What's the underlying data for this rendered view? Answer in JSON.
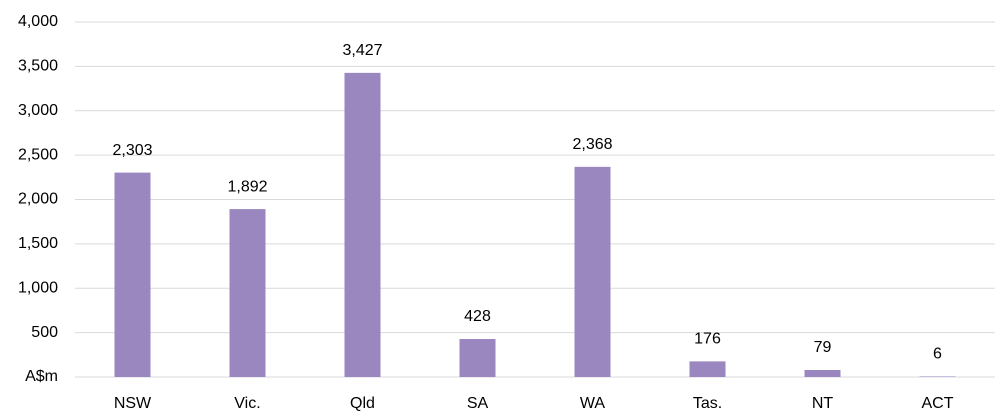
{
  "chart_data": {
    "type": "bar",
    "categories": [
      "NSW",
      "Vic.",
      "Qld",
      "SA",
      "WA",
      "Tas.",
      "NT",
      "ACT"
    ],
    "values": [
      2303,
      1892,
      3427,
      428,
      2368,
      176,
      79,
      6
    ],
    "value_labels": [
      "2,303",
      "1,892",
      "3,427",
      "428",
      "2,368",
      "176",
      "79",
      "6"
    ],
    "color": "#9b87c0",
    "ylim": [
      0,
      4000
    ],
    "yticks": [
      {
        "value": 0,
        "label": "A$m"
      },
      500,
      {
        "value": 1000,
        "label": "1,000"
      },
      {
        "value": 1500,
        "label": "1,500"
      },
      {
        "value": 2000,
        "label": "2,000"
      },
      {
        "value": 2500,
        "label": "2,500"
      },
      {
        "value": 3000,
        "label": "3,000"
      },
      {
        "value": 3500,
        "label": "3,500"
      },
      {
        "value": 4000,
        "label": "4,000"
      }
    ],
    "grid": true
  }
}
